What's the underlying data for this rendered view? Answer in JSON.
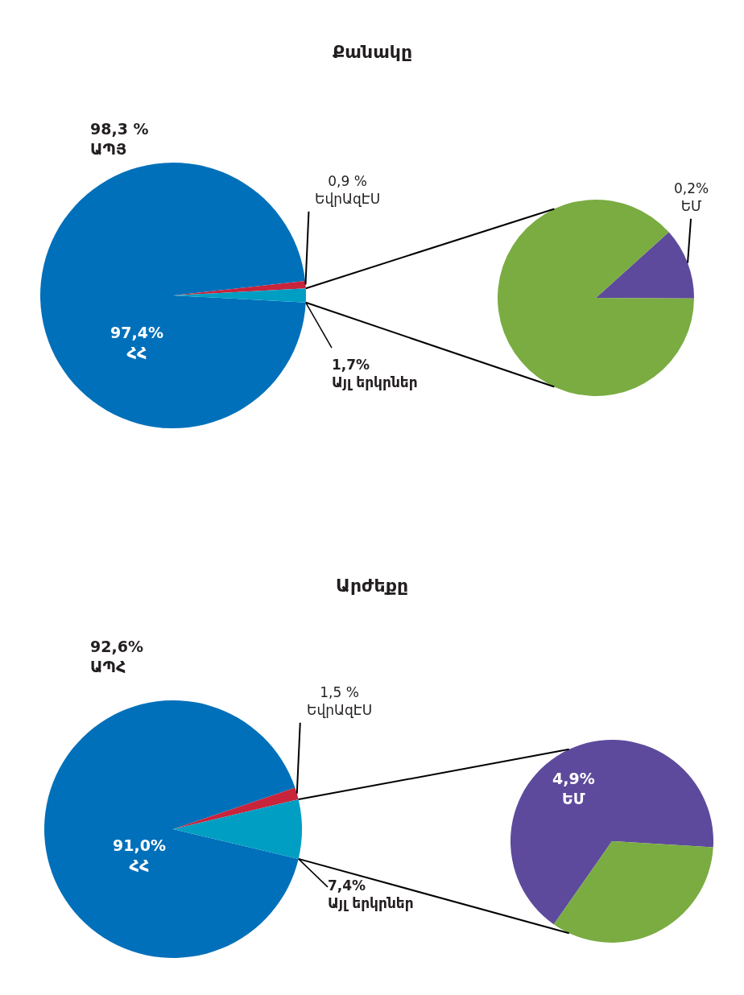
{
  "chart_data": [
    {
      "type": "pie",
      "title": "Քանակը",
      "categories": [
        "ՀՀ",
        "ԵվրԱզԷՍ",
        "Այլ երկրներ"
      ],
      "values": [
        97.4,
        0.9,
        1.7
      ],
      "colors": [
        "#0070ba",
        "#c8243c",
        "#009ec3"
      ],
      "value_labels": [
        "97,4%",
        "0,9 %",
        "1,7%"
      ],
      "annotations": [
        "98,3 %\nԱՊՅ"
      ]
    },
    {
      "type": "pie",
      "categories": [
        "ԵՄ",
        null
      ],
      "values": [
        0.2,
        1.5
      ],
      "colors": [
        "#5e4a9c",
        "#7aac42"
      ],
      "value_labels": [
        "0,2%",
        null
      ]
    },
    {
      "type": "pie",
      "title": "Արժեքը",
      "categories": [
        "ՀՀ",
        "ԵվրԱզԷՍ",
        "Այլ երկրներ"
      ],
      "values": [
        91.0,
        1.5,
        7.4
      ],
      "colors": [
        "#0070ba",
        "#c8243c",
        "#009ec3"
      ],
      "value_labels": [
        "91,0%",
        "1,5 %",
        "7,4%"
      ],
      "annotations": [
        "92,6%\nԱՊՀ"
      ]
    },
    {
      "type": "pie",
      "categories": [
        "ԵՄ",
        null
      ],
      "values": [
        4.9,
        2.5
      ],
      "colors": [
        "#5e4a9c",
        "#7aac42"
      ],
      "value_labels": [
        "4,9%",
        null
      ]
    }
  ]
}
